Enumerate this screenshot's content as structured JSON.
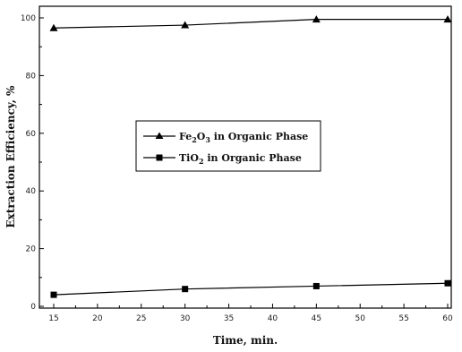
{
  "chart_data": {
    "type": "line",
    "xlabel": "Time, min.",
    "ylabel": "Extraction Efficiency, %",
    "xlim": [
      15,
      60
    ],
    "ylim": [
      0,
      100
    ],
    "xticks": [
      "15",
      "20",
      "25",
      "30",
      "35",
      "40",
      "45",
      "50",
      "55",
      "60"
    ],
    "yticks": [
      "0",
      "20",
      "40",
      "60",
      "80",
      "100"
    ],
    "grid": false,
    "legend_placement": "center-left",
    "series": [
      {
        "legend": {
          "base": "Fe",
          "sub1": "2",
          "mid": "O",
          "sub2": "3",
          "rest": " in Organic Phase"
        },
        "marker": "triangle",
        "x": [
          15,
          30,
          45,
          60
        ],
        "y": [
          96.5,
          97.5,
          99.5,
          99.5
        ]
      },
      {
        "legend": {
          "base": "TiO",
          "sub1": "2",
          "mid": "",
          "sub2": "",
          "rest": " in Organic Phase"
        },
        "marker": "square",
        "x": [
          15,
          30,
          45,
          60
        ],
        "y": [
          4,
          6,
          7,
          8
        ]
      }
    ]
  }
}
